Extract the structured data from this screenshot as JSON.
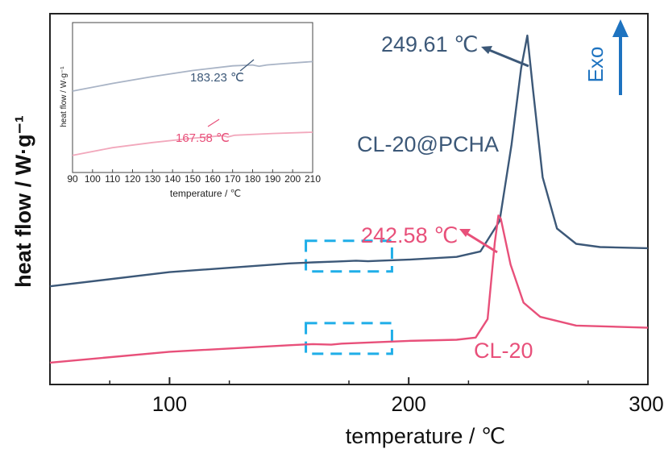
{
  "chart_data": {
    "type": "line",
    "xlabel": "temperature / ℃",
    "ylabel": "heat flow / W·g⁻¹",
    "xlim": [
      50,
      300
    ],
    "xticks": [
      100,
      200,
      300
    ],
    "exo_label": "Exo",
    "colors": {
      "pcha": "#3c5878",
      "cl20": "#e8507a",
      "highlight": "#1faee8",
      "exo_arrow": "#1e73c0"
    },
    "series": [
      {
        "name": "CL-20@PCHA",
        "color": "#3c5878",
        "points": [
          [
            50,
            1.0
          ],
          [
            100,
            2.3
          ],
          [
            150,
            3.1
          ],
          [
            160,
            3.2
          ],
          [
            170,
            3.28
          ],
          [
            178,
            3.35
          ],
          [
            183,
            3.3
          ],
          [
            188,
            3.35
          ],
          [
            200,
            3.45
          ],
          [
            220,
            3.7
          ],
          [
            230,
            4.2
          ],
          [
            238,
            7.0
          ],
          [
            243,
            14.0
          ],
          [
            247,
            21.0
          ],
          [
            249.61,
            24.0
          ],
          [
            252,
            19.0
          ],
          [
            256,
            11.0
          ],
          [
            262,
            6.3
          ],
          [
            270,
            4.9
          ],
          [
            280,
            4.6
          ],
          [
            300,
            4.5
          ]
        ]
      },
      {
        "name": "CL-20",
        "color": "#e8507a",
        "points": [
          [
            50,
            -6.0
          ],
          [
            100,
            -5.0
          ],
          [
            150,
            -4.4
          ],
          [
            160,
            -4.3
          ],
          [
            167.58,
            -4.35
          ],
          [
            172,
            -4.25
          ],
          [
            200,
            -4.0
          ],
          [
            220,
            -3.9
          ],
          [
            228,
            -3.7
          ],
          [
            233,
            -2.0
          ],
          [
            236,
            5.0
          ],
          [
            237.5,
            7.5
          ],
          [
            238.5,
            7.2
          ],
          [
            242.58,
            3.0
          ],
          [
            248,
            -0.5
          ],
          [
            255,
            -1.8
          ],
          [
            270,
            -2.6
          ],
          [
            300,
            -2.8
          ]
        ]
      }
    ],
    "annotations": [
      {
        "label": "249.61 ℃"
      },
      {
        "label": "242.58 ℃"
      },
      {
        "label": "CL-20@PCHA"
      },
      {
        "label": "CL-20"
      }
    ],
    "highlight_boxes": [
      {
        "x": [
          157,
          193
        ],
        "series": "CL-20@PCHA"
      },
      {
        "x": [
          157,
          193
        ],
        "series": "CL-20"
      }
    ],
    "inset": {
      "xlabel": "temperature / ℃",
      "ylabel": "heat flow / W·g⁻¹",
      "xlim": [
        90,
        210
      ],
      "xticks": [
        90,
        100,
        110,
        120,
        130,
        140,
        150,
        160,
        170,
        180,
        190,
        200,
        210
      ],
      "series": [
        {
          "name": "CL-20@PCHA",
          "color": "#a9b4c6",
          "points": [
            [
              90,
              0.0
            ],
            [
              110,
              0.9
            ],
            [
              130,
              1.7
            ],
            [
              150,
              2.4
            ],
            [
              170,
              2.95
            ],
            [
              180,
              3.05
            ],
            [
              183.23,
              2.9
            ],
            [
              187,
              3.05
            ],
            [
              195,
              3.2
            ],
            [
              210,
              3.45
            ]
          ]
        },
        {
          "name": "CL-20",
          "color": "#f2a8bc",
          "points": [
            [
              90,
              -7.5
            ],
            [
              110,
              -6.6
            ],
            [
              130,
              -6.0
            ],
            [
              150,
              -5.5
            ],
            [
              165,
              -5.2
            ],
            [
              167.58,
              -5.35
            ],
            [
              171,
              -5.15
            ],
            [
              190,
              -4.95
            ],
            [
              210,
              -4.8
            ]
          ]
        }
      ],
      "annotations": [
        {
          "label": "183.23 ℃"
        },
        {
          "label": "167.58 ℃"
        }
      ]
    }
  }
}
